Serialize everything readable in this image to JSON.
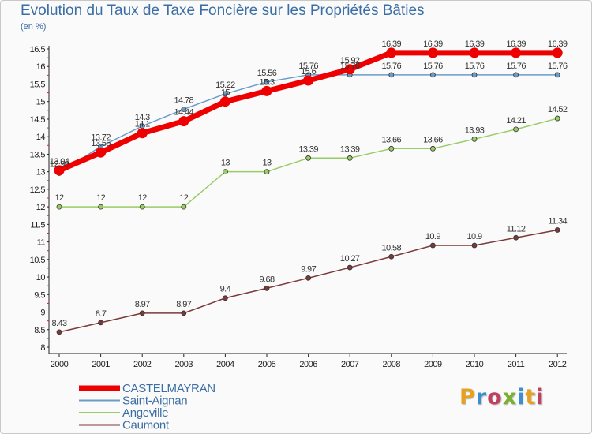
{
  "title": "Evolution du Taux de Taxe Foncière sur les Propriétés Bâties",
  "unit": "(en %)",
  "logo_text": "Proxiti",
  "logo_colors": [
    "#e8a020",
    "#3a8fd0",
    "#c04060",
    "#7ab030",
    "#3a8fd0",
    "#e8a020",
    "#c04060"
  ],
  "chart_data": {
    "type": "line",
    "x": [
      "2000",
      "2001",
      "2002",
      "2003",
      "2004",
      "2005",
      "2006",
      "2007",
      "2008",
      "2009",
      "2010",
      "2011",
      "2012"
    ],
    "ylim": [
      8,
      16.5
    ],
    "yticks": [
      "8",
      "8.5",
      "9",
      "9.5",
      "10",
      "10.5",
      "11",
      "11.5",
      "12",
      "12.5",
      "13",
      "13.5",
      "14",
      "14.5",
      "15",
      "15.5",
      "16",
      "16.5"
    ],
    "grid": false,
    "legend_position": "bottom-left",
    "series": [
      {
        "name": "CASTELMAYRAN",
        "color": "#ee0000",
        "values": [
          13.04,
          13.55,
          14.1,
          14.44,
          15.0,
          15.3,
          15.6,
          15.92,
          16.39,
          16.39,
          16.39,
          16.39,
          16.39
        ],
        "labels": [
          "13.04",
          "13.55",
          "14.1",
          "14.44",
          "15",
          "15.3",
          "15.6",
          "15.92",
          "16.39",
          "16.39",
          "16.39",
          "16.39",
          "16.39"
        ]
      },
      {
        "name": "Saint-Aignan",
        "color": "#6a9cc8",
        "values": [
          12.96,
          13.72,
          14.3,
          14.78,
          15.22,
          15.56,
          15.76,
          15.76,
          15.76,
          15.76,
          15.76,
          15.76,
          15.76
        ],
        "labels": [
          "12.96",
          "13.72",
          "14.3",
          "14.78",
          "15.22",
          "15.56",
          "15.76",
          "15.76",
          "15.76",
          "15.76",
          "15.76",
          "15.76",
          "15.76"
        ]
      },
      {
        "name": "Angeville",
        "color": "#9acc66",
        "values": [
          12,
          12,
          12,
          12,
          13,
          13,
          13.39,
          13.39,
          13.66,
          13.66,
          13.93,
          14.21,
          14.52
        ],
        "labels": [
          "12",
          "12",
          "12",
          "12",
          "13",
          "13",
          "13.39",
          "13.39",
          "13.66",
          "13.66",
          "13.93",
          "14.21",
          "14.52"
        ]
      },
      {
        "name": "Caumont",
        "color": "#7a3a3a",
        "values": [
          8.43,
          8.7,
          8.97,
          8.97,
          9.4,
          9.68,
          9.97,
          10.27,
          10.58,
          10.9,
          10.9,
          11.12,
          11.34
        ],
        "labels": [
          "8.43",
          "8.7",
          "8.97",
          "8.97",
          "9.4",
          "9.68",
          "9.97",
          "10.27",
          "10.58",
          "10.9",
          "10.9",
          "11.12",
          "11.34"
        ]
      }
    ]
  }
}
